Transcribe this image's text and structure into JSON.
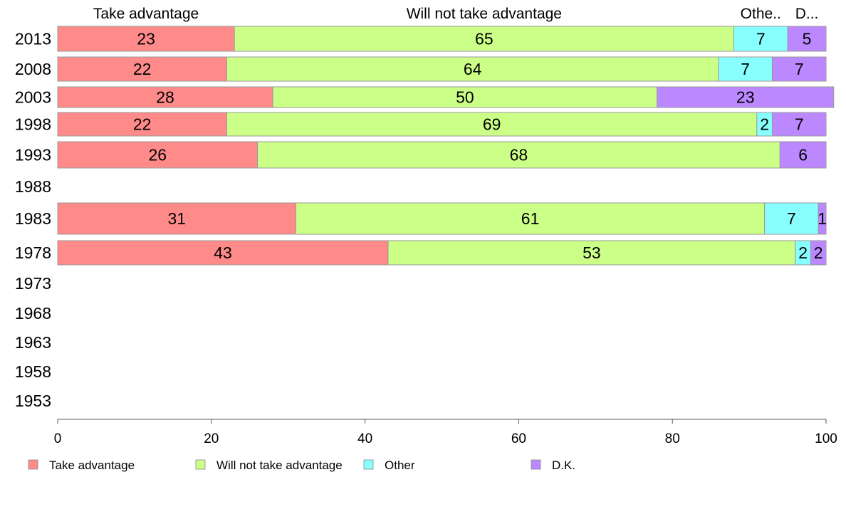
{
  "chart_data": {
    "type": "bar",
    "orientation": "horizontal",
    "stacked": true,
    "categories": [
      "2013",
      "2008",
      "2003",
      "1998",
      "1993",
      "1988",
      "1983",
      "1978",
      "1973",
      "1968",
      "1963",
      "1958",
      "1953"
    ],
    "series": [
      {
        "name": "Take advantage",
        "color": "#ff8a8a",
        "values": [
          23,
          22,
          28,
          22,
          26,
          null,
          31,
          43,
          null,
          null,
          null,
          null,
          null
        ]
      },
      {
        "name": "Will not take advantage",
        "color": "#ccff88",
        "values": [
          65,
          64,
          50,
          69,
          68,
          null,
          61,
          53,
          null,
          null,
          null,
          null,
          null
        ]
      },
      {
        "name": "Other",
        "color": "#88ffff",
        "values": [
          7,
          7,
          0,
          2,
          0,
          null,
          7,
          2,
          null,
          null,
          null,
          null,
          null
        ]
      },
      {
        "name": "D.K.",
        "color": "#bb88ff",
        "values": [
          5,
          7,
          23,
          7,
          6,
          null,
          1,
          2,
          null,
          null,
          null,
          null,
          null
        ]
      }
    ],
    "top_labels": [
      "Take advantage",
      "Will not take advantage",
      "Othe..",
      "D..."
    ],
    "xlim": [
      0,
      100
    ],
    "xticks": [
      "0",
      "20",
      "40",
      "60",
      "80",
      "100"
    ],
    "grid": false,
    "legend_position": "bottom"
  }
}
